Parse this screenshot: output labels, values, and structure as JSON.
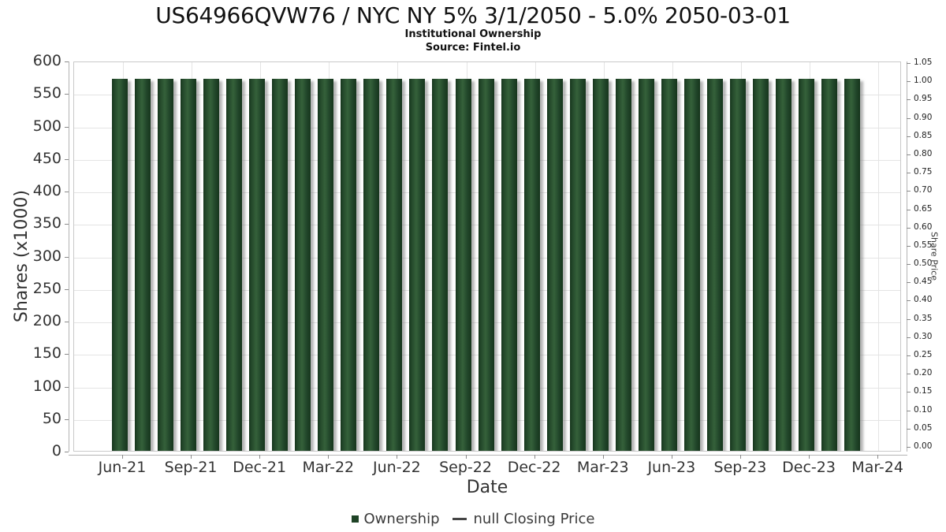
{
  "chart_data": {
    "type": "bar",
    "title": "US64966QVW76 / NYC NY 5% 3/1/2050 - 5.0% 2050-03-01",
    "subtitle": "Institutional Ownership",
    "source": "Source: Fintel.io",
    "xlabel": "Date",
    "ylabel_left": "Shares (x1000)",
    "ylabel_right": "Share Price",
    "ylim_left": [
      0,
      600
    ],
    "ylim_right": [
      0,
      1.05
    ],
    "grid": true,
    "legend_position": "bottom",
    "categories": [
      "Jun-21",
      "Jul-21",
      "Aug-21",
      "Sep-21",
      "Oct-21",
      "Nov-21",
      "Dec-21",
      "Jan-22",
      "Feb-22",
      "Mar-22",
      "Apr-22",
      "May-22",
      "Jun-22",
      "Jul-22",
      "Aug-22",
      "Sep-22",
      "Oct-22",
      "Nov-22",
      "Dec-22",
      "Jan-23",
      "Feb-23",
      "Mar-23",
      "Apr-23",
      "May-23",
      "Jun-23",
      "Jul-23",
      "Aug-23",
      "Sep-23",
      "Oct-23",
      "Nov-23",
      "Dec-23",
      "Jan-24",
      "Feb-24"
    ],
    "series": [
      {
        "name": "Ownership",
        "type": "bar",
        "color": "#1f4326",
        "values": [
          575,
          575,
          575,
          575,
          575,
          575,
          575,
          575,
          575,
          575,
          575,
          575,
          575,
          575,
          575,
          575,
          575,
          575,
          575,
          575,
          575,
          575,
          575,
          575,
          575,
          575,
          575,
          575,
          575,
          575,
          575,
          575,
          575
        ]
      },
      {
        "name": "null Closing Price",
        "type": "line",
        "color": "#454545",
        "values": []
      }
    ],
    "x_tick_labels": [
      "Jun-21",
      "Sep-21",
      "Dec-21",
      "Mar-22",
      "Jun-22",
      "Sep-22",
      "Dec-22",
      "Mar-23",
      "Jun-23",
      "Sep-23",
      "Dec-23",
      "Mar-24"
    ],
    "yticks_left": [
      0,
      50,
      100,
      150,
      200,
      250,
      300,
      350,
      400,
      450,
      500,
      550,
      600
    ],
    "yticks_right": [
      "0.00",
      "0.05",
      "0.10",
      "0.15",
      "0.20",
      "0.25",
      "0.30",
      "0.35",
      "0.40",
      "0.45",
      "0.50",
      "0.55",
      "0.60",
      "0.65",
      "0.70",
      "0.75",
      "0.80",
      "0.85",
      "0.90",
      "0.95",
      "1.00",
      "1.05"
    ]
  },
  "colors": {
    "bar_dark": "#16351c",
    "bar_mid": "#35613a",
    "grid": "#e4e4e4",
    "frame": "#c9c9c9",
    "axis_line": "#b3b3b3",
    "tick": "#8a8a8a",
    "text": "#333333"
  }
}
